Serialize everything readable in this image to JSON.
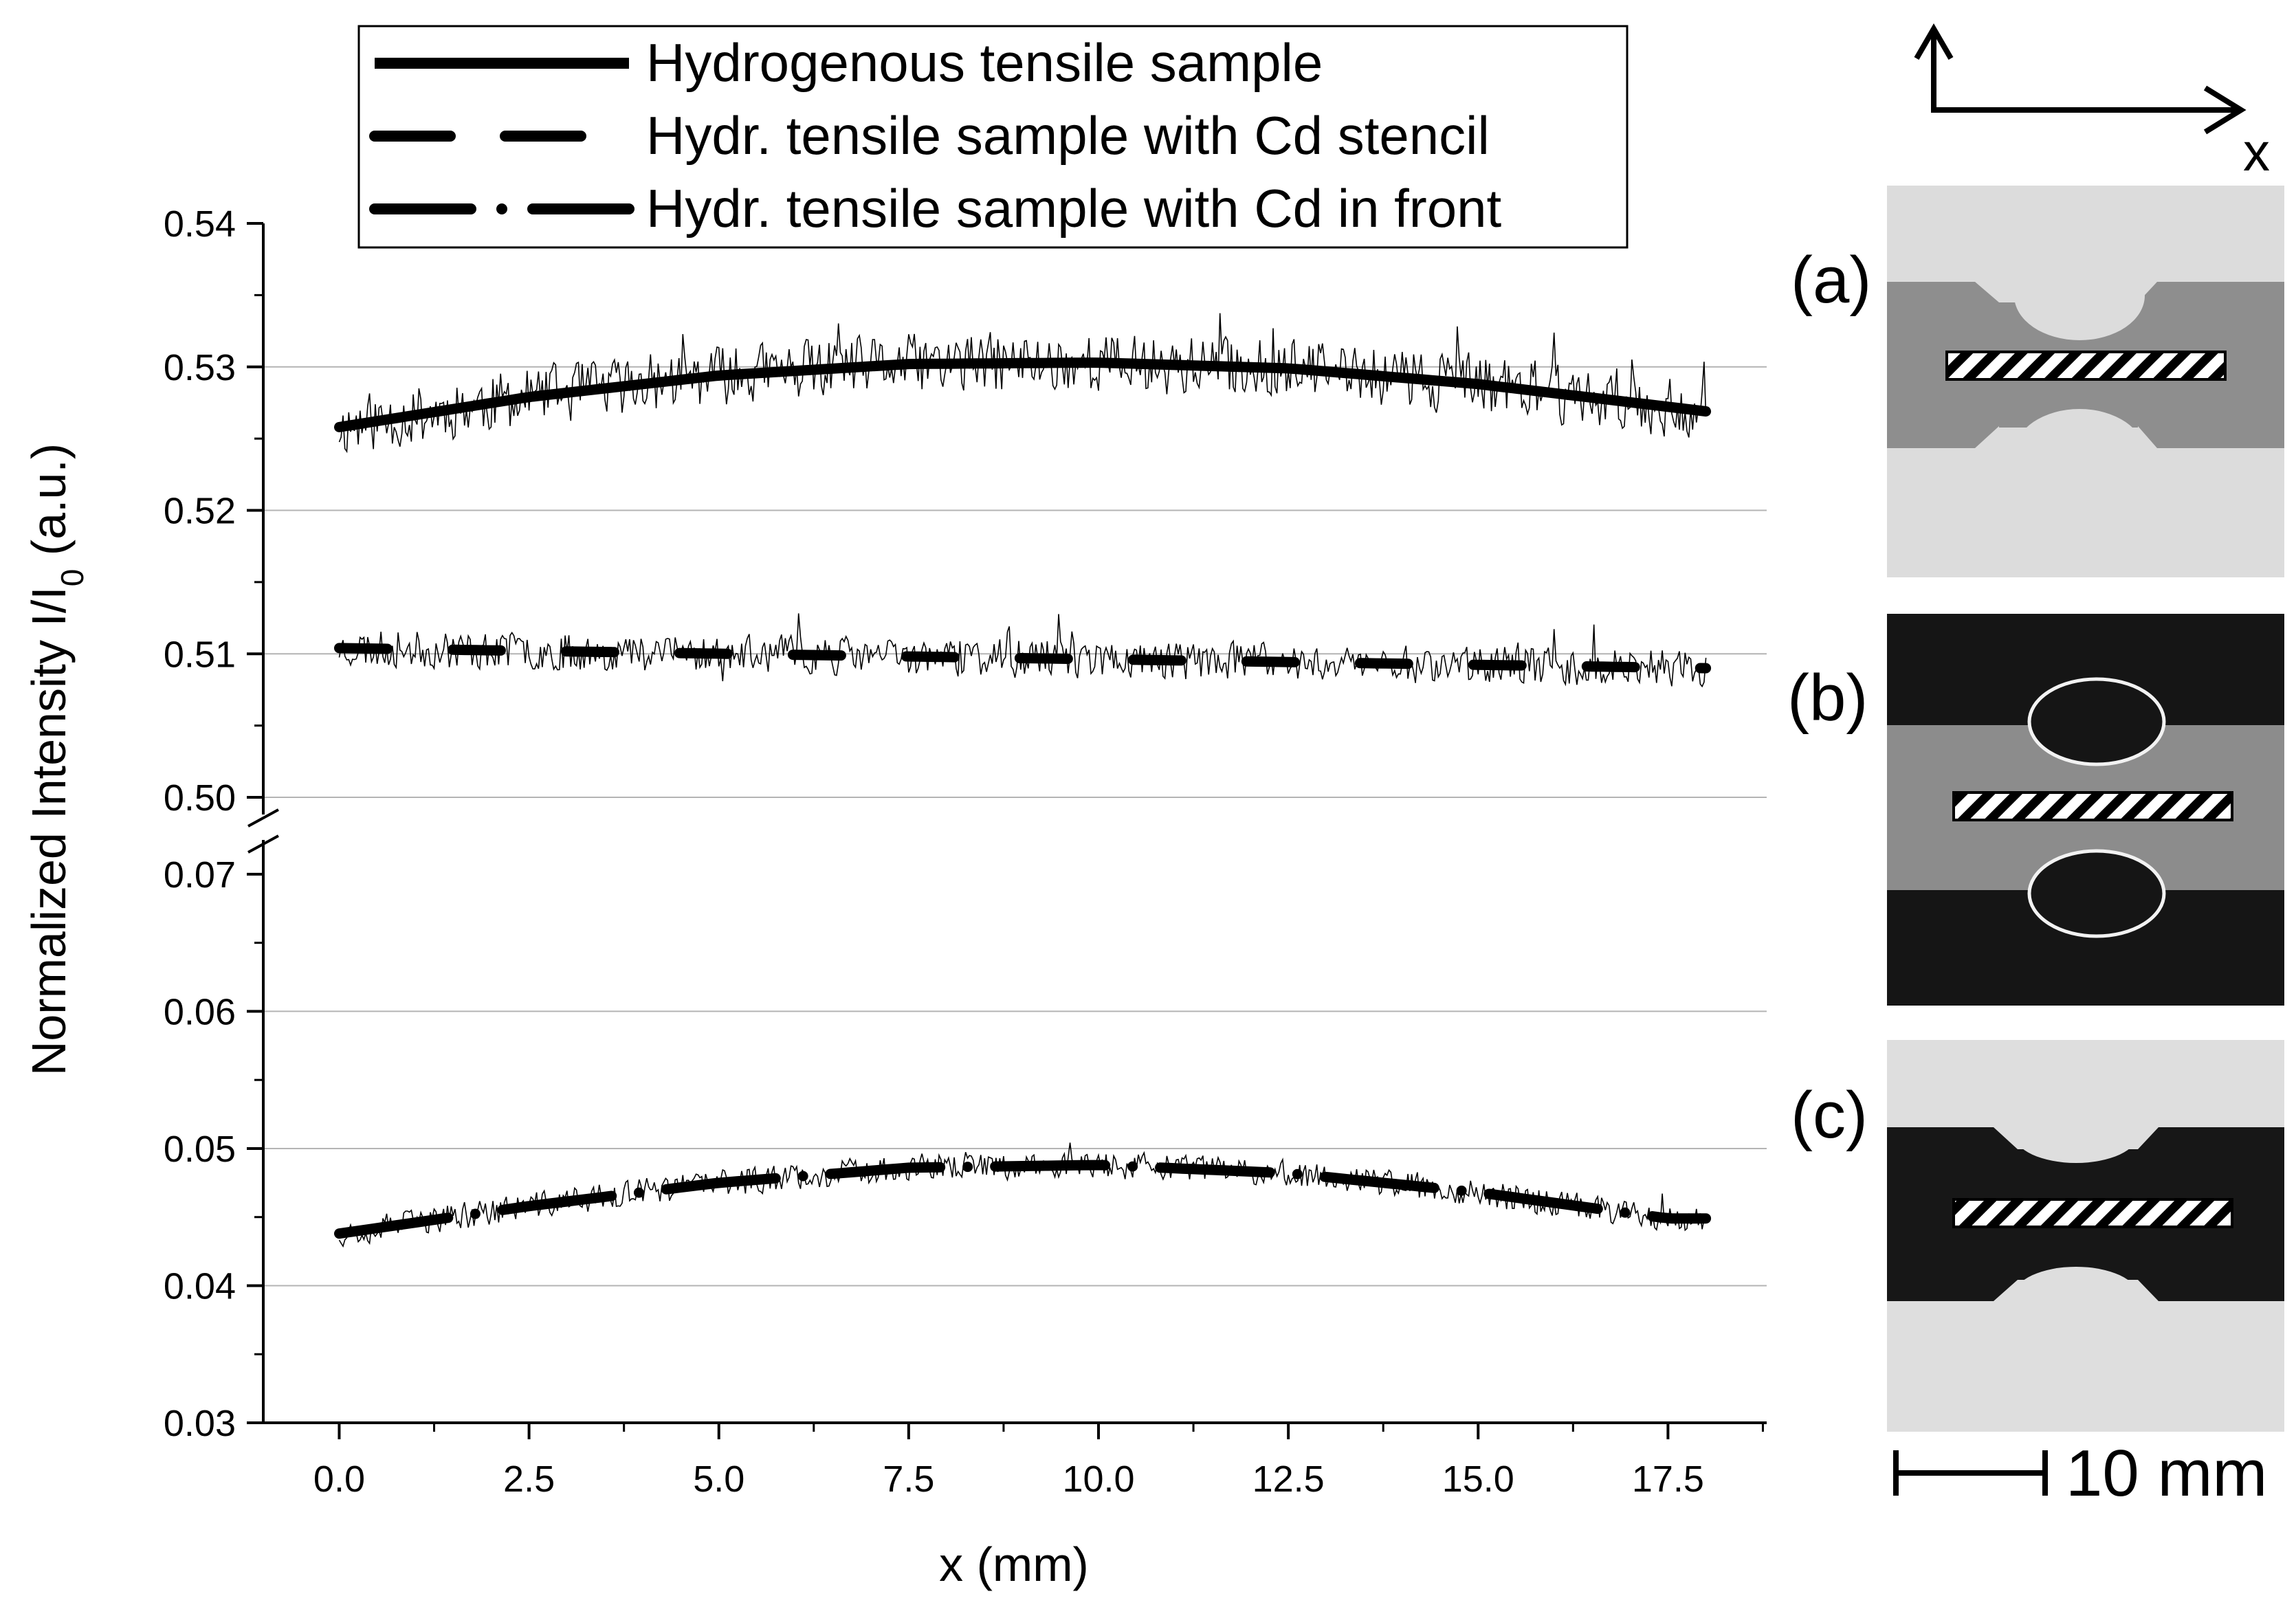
{
  "chart_data": {
    "type": "line",
    "xlabel": "x (mm)",
    "ylabel_main": "Normalized Intensity I/I",
    "ylabel_sub": "0",
    "ylabel_unit": " (a.u.)",
    "xlim": [
      -1.0,
      18.8
    ],
    "x_ticks": [
      0.0,
      2.5,
      5.0,
      7.5,
      10.0,
      12.5,
      15.0,
      17.5
    ],
    "x_tick_labels": [
      "0.0",
      "2.5",
      "5.0",
      "7.5",
      "10.0",
      "12.5",
      "15.0",
      "17.5"
    ],
    "y_axis_break": true,
    "y_upper_range": [
      0.5,
      0.54
    ],
    "y_lower_range": [
      0.03,
      0.072
    ],
    "y_upper_ticks": [
      0.5,
      0.51,
      0.52,
      0.53,
      0.54
    ],
    "y_upper_tick_labels": [
      "0.50",
      "0.51",
      "0.52",
      "0.53",
      "0.54"
    ],
    "y_lower_ticks": [
      0.03,
      0.04,
      0.05,
      0.06,
      0.07
    ],
    "y_lower_tick_labels": [
      "0.03",
      "0.04",
      "0.05",
      "0.06",
      "0.07"
    ],
    "gridlines_y": [
      0.5,
      0.51,
      0.52,
      0.53,
      0.04,
      0.05,
      0.06
    ],
    "legend": [
      {
        "label": "Hydrogenous tensile sample",
        "style": "solid"
      },
      {
        "label": "Hydr. tensile sample with Cd stencil",
        "style": "dash"
      },
      {
        "label": "Hydr. tensile sample with Cd in front",
        "style": "dashdot"
      }
    ],
    "series": [
      {
        "name": "Hydrogenous tensile sample",
        "style": "solid",
        "x_range": [
          0.0,
          18.0
        ],
        "fit": {
          "x": [
            0.0,
            2.5,
            5.0,
            7.5,
            10.0,
            12.5,
            15.0,
            18.0
          ],
          "y": [
            0.5258,
            0.5279,
            0.5294,
            0.5302,
            0.5303,
            0.5299,
            0.5288,
            0.5269
          ]
        },
        "noise_amplitude": 0.0025,
        "seed": 11
      },
      {
        "name": "Hydr. tensile sample with Cd stencil",
        "style": "dash",
        "x_range": [
          0.0,
          18.0
        ],
        "fit": {
          "x": [
            0.0,
            18.0
          ],
          "y": [
            0.5104,
            0.509
          ]
        },
        "noise_amplitude": 0.0016,
        "seed": 23
      },
      {
        "name": "Hydr. tensile sample with Cd in front",
        "style": "dashdot",
        "x_range": [
          0.0,
          18.0
        ],
        "fit": {
          "x": [
            0.0,
            2.5,
            5.0,
            7.5,
            10.0,
            12.5,
            15.0,
            17.5
          ],
          "y": [
            0.0438,
            0.0458,
            0.0475,
            0.0486,
            0.0488,
            0.0482,
            0.0468,
            0.0449
          ]
        },
        "noise_amplitude": 0.0012,
        "seed": 37
      }
    ]
  },
  "panels": [
    {
      "label": "(a)",
      "background": "#dcdcdc",
      "sample": "#8e8e8e",
      "edge": "#8e8e8e"
    },
    {
      "label": "(b)",
      "background": "#151515",
      "sample": "#8c8c8c",
      "edge": "#f2f2f2"
    },
    {
      "label": "(c)",
      "background": "#dedede",
      "sample": "#171717",
      "edge": "#171717"
    }
  ],
  "axis_indicator_label": "x",
  "scale_bar_label": "10 mm"
}
